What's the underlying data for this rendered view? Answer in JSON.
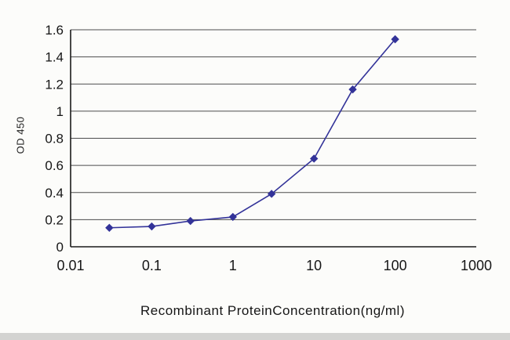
{
  "page": {
    "background": "#fcfcfa"
  },
  "chart_data": {
    "type": "line",
    "title": "",
    "xlabel": "Recombinant ProteinConcentration(ng/ml)",
    "ylabel": "OD 450",
    "x_scale": "log",
    "xlim": [
      0.01,
      1000
    ],
    "ylim": [
      0,
      1.6
    ],
    "x_ticks": [
      0.01,
      0.1,
      1,
      10,
      100,
      1000
    ],
    "x_tick_labels": [
      "0.01",
      "0.1",
      "1",
      "10",
      "100",
      "1000"
    ],
    "y_ticks": [
      0,
      0.2,
      0.4,
      0.6,
      0.8,
      1,
      1.2,
      1.4,
      1.6
    ],
    "y_tick_labels": [
      "0",
      "0.2",
      "0.4",
      "0.6",
      "0.8",
      "1",
      "1.2",
      "1.4",
      "1.6"
    ],
    "grid": "horizontal",
    "legend": "none",
    "grid_color": "#4d4d4d",
    "axis_color": "#1a1a1a",
    "series": [
      {
        "name": "OD 450",
        "color": "#333399",
        "marker": "diamond",
        "x": [
          0.03,
          0.1,
          0.3,
          1,
          3,
          10,
          30,
          100
        ],
        "y": [
          0.14,
          0.15,
          0.19,
          0.22,
          0.39,
          0.65,
          1.16,
          1.53
        ]
      }
    ]
  }
}
